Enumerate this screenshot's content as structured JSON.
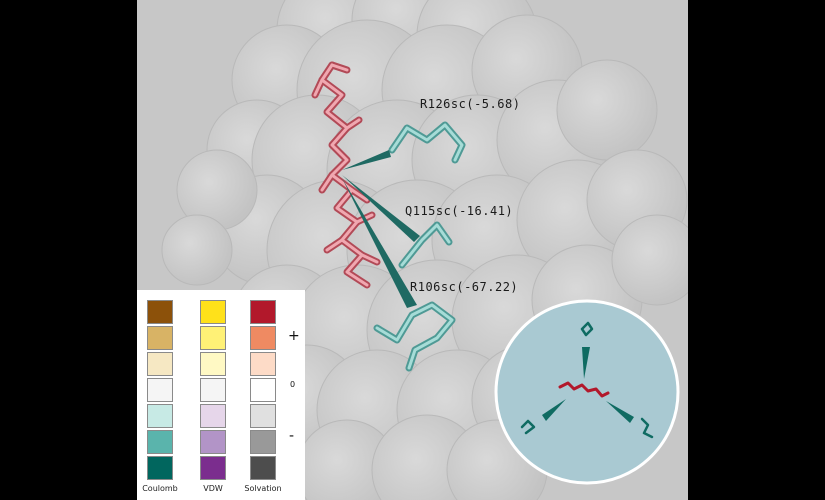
{
  "residues": [
    {
      "id": "r126",
      "label": "R126sc(-5.68)"
    },
    {
      "id": "q115",
      "label": "Q115sc(-16.41)"
    },
    {
      "id": "r106",
      "label": "R106sc(-67.22)"
    }
  ],
  "legend": {
    "columns": [
      {
        "name": "Coulomb",
        "colors": [
          "#8c510a",
          "#d8b365",
          "#f6e8c3",
          "#f5f5f5",
          "#c7eae5",
          "#5ab4ac",
          "#01665e"
        ]
      },
      {
        "name": "VDW",
        "colors": [
          "#ffe11a",
          "#fff176",
          "#fff9c4",
          "#f5f5f5",
          "#e6d6ea",
          "#b294c7",
          "#7b2d8e"
        ]
      },
      {
        "name": "Solvation",
        "colors": [
          "#b2182b",
          "#ef8a62",
          "#fddbc7",
          "#ffffff",
          "#e0e0e0",
          "#999999",
          "#4d4d4d"
        ]
      }
    ],
    "plus": "+",
    "zero": "0",
    "minus": "-"
  },
  "colors": {
    "ligand": "#d9737f",
    "residue": "#7fbfbb",
    "arrow": "#1f6a63",
    "surface": "#d2d2d2",
    "inset_bg": "#a9c9d2"
  }
}
